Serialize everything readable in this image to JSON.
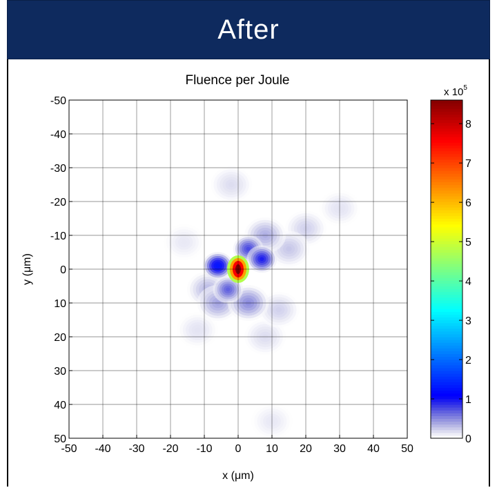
{
  "banner": {
    "title": "After"
  },
  "chart_data": {
    "type": "heatmap",
    "title": "Fluence per Joule",
    "xlabel": "x (μm)",
    "ylabel": "y (μm)",
    "xlim": [
      -50,
      50
    ],
    "ylim": [
      -50,
      50
    ],
    "y_axis_direction": "reversed (-50 at top, 50 at bottom)",
    "x_ticks": [
      "-50",
      "-40",
      "-30",
      "-20",
      "-10",
      "0",
      "10",
      "20",
      "30",
      "40",
      "50"
    ],
    "y_ticks": [
      "-50",
      "-40",
      "-30",
      "-20",
      "-10",
      "0",
      "10",
      "20",
      "30",
      "40",
      "50"
    ],
    "grid": true,
    "colormap": "jet (white at zero)",
    "colorbar": {
      "range": [
        0,
        8.6
      ],
      "ticks": [
        "0",
        "1",
        "2",
        "3",
        "4",
        "5",
        "6",
        "7",
        "8"
      ],
      "multiplier_label": "x 10",
      "multiplier_exponent": "5"
    },
    "peak": {
      "x": 0,
      "y": 0,
      "value": 8.6
    },
    "lobes": [
      {
        "x": 0,
        "y": 0,
        "value": 8.6
      },
      {
        "x": -6,
        "y": -1,
        "value": 1.3
      },
      {
        "x": 7,
        "y": -3,
        "value": 1.0
      },
      {
        "x": 3,
        "y": -6,
        "value": 0.8
      },
      {
        "x": -3,
        "y": 6,
        "value": 0.7
      },
      {
        "x": 3,
        "y": 10,
        "value": 0.5
      },
      {
        "x": -6,
        "y": 10,
        "value": 0.4
      },
      {
        "x": 8,
        "y": -10,
        "value": 0.35
      },
      {
        "x": -9,
        "y": 6,
        "value": 0.3
      },
      {
        "x": 15,
        "y": -6,
        "value": 0.25
      },
      {
        "x": 20,
        "y": -12,
        "value": 0.2
      },
      {
        "x": 12,
        "y": 12,
        "value": 0.2
      },
      {
        "x": -2,
        "y": -25,
        "value": 0.15
      },
      {
        "x": 8,
        "y": 20,
        "value": 0.15
      },
      {
        "x": -12,
        "y": 18,
        "value": 0.12
      },
      {
        "x": 30,
        "y": -18,
        "value": 0.12
      },
      {
        "x": -16,
        "y": -8,
        "value": 0.1
      },
      {
        "x": 10,
        "y": 45,
        "value": 0.1
      }
    ]
  }
}
